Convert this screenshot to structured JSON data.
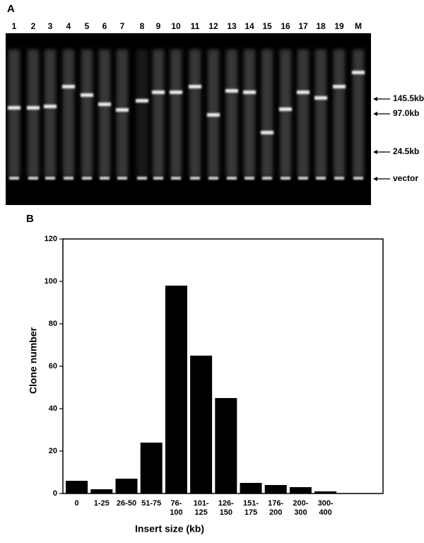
{
  "panel_a": {
    "label": "A",
    "lane_labels": [
      "1",
      "2",
      "3",
      "4",
      "5",
      "6",
      "7",
      "8",
      "9",
      "10",
      "11",
      "12",
      "13",
      "14",
      "15",
      "16",
      "17",
      "18",
      "19",
      "M"
    ],
    "marker_labels": [
      "145.5kb",
      "97.0kb",
      "24.5kb",
      "vector"
    ]
  },
  "panel_b": {
    "label": "B"
  },
  "chart_data": {
    "type": "bar",
    "x_label": "Insert size (kb)",
    "y_label": "Clone number",
    "categories": [
      "0",
      "1-25",
      "26-50",
      "51-75",
      "76-100",
      "101-125",
      "126-150",
      "151-175",
      "176-200",
      "200-300",
      "300-400"
    ],
    "values": [
      6,
      2,
      7,
      24,
      98,
      65,
      45,
      5,
      4,
      3,
      1
    ],
    "color": "#000000",
    "ylim": [
      0,
      120
    ],
    "yticks": [
      0,
      20,
      40,
      60,
      80,
      100,
      120
    ]
  }
}
